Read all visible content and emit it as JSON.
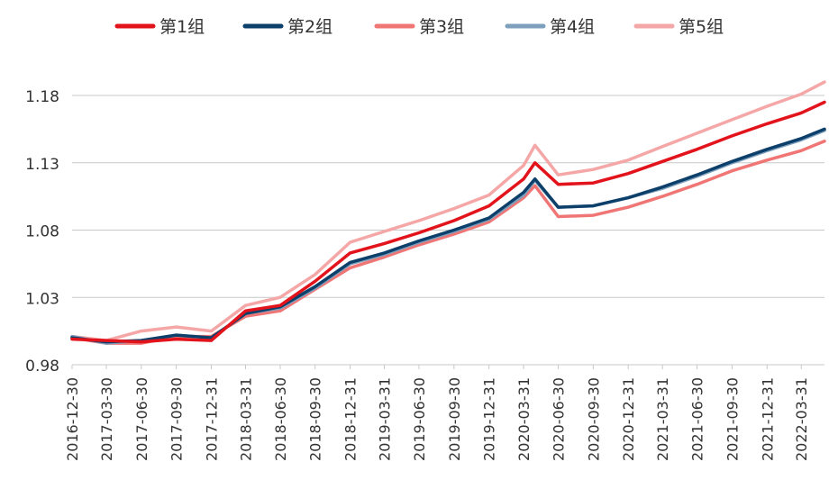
{
  "chart_data": {
    "type": "line",
    "title": "",
    "xlabel": "",
    "ylabel": "",
    "ylim": [
      0.98,
      1.18
    ],
    "yticks": [
      "0.98",
      "1.03",
      "1.08",
      "1.13",
      "1.18"
    ],
    "grid": "horizontal",
    "legend_position": "top",
    "x_tick_labels": [
      "2016-12-30",
      "2017-03-30",
      "2017-06-30",
      "2017-09-30",
      "2017-12-31",
      "2018-03-31",
      "2018-06-30",
      "2018-09-30",
      "2018-12-31",
      "2019-03-31",
      "2019-06-30",
      "2019-09-30",
      "2019-12-31",
      "2020-03-31",
      "2020-06-30",
      "2020-09-30",
      "2020-12-31",
      "2021-03-31",
      "2021-06-30",
      "2021-09-30",
      "2021-12-31",
      "2022-03-31"
    ],
    "x": [
      "2016-12-30",
      "2017-03-30",
      "2017-06-30",
      "2017-09-30",
      "2017-12-31",
      "2018-03-31",
      "2018-06-30",
      "2018-09-30",
      "2018-12-31",
      "2019-03-31",
      "2019-06-30",
      "2019-09-30",
      "2019-12-31",
      "2020-03-31",
      "2020-04-30",
      "2020-06-30",
      "2020-09-30",
      "2020-12-31",
      "2021-03-31",
      "2021-06-30",
      "2021-09-30",
      "2021-12-31",
      "2022-03-31",
      "2022-05-31"
    ],
    "series": [
      {
        "name": "第1组",
        "color": "#e3131b",
        "values": [
          0.999,
          0.998,
          0.997,
          0.999,
          0.998,
          1.02,
          1.024,
          1.042,
          1.063,
          1.07,
          1.078,
          1.087,
          1.098,
          1.118,
          1.13,
          1.114,
          1.115,
          1.122,
          1.131,
          1.14,
          1.15,
          1.159,
          1.167,
          1.175
        ]
      },
      {
        "name": "第2组",
        "color": "#0d3f6b",
        "values": [
          1.0,
          0.997,
          0.998,
          1.002,
          1.0,
          1.018,
          1.023,
          1.038,
          1.056,
          1.063,
          1.072,
          1.08,
          1.089,
          1.108,
          1.118,
          1.097,
          1.098,
          1.104,
          1.112,
          1.121,
          1.131,
          1.14,
          1.148,
          1.155
        ]
      },
      {
        "name": "第3组",
        "color": "#f07676",
        "values": [
          1.0,
          0.996,
          0.996,
          1.001,
          1.001,
          1.016,
          1.02,
          1.036,
          1.052,
          1.06,
          1.069,
          1.077,
          1.086,
          1.104,
          1.113,
          1.09,
          1.091,
          1.097,
          1.105,
          1.114,
          1.124,
          1.132,
          1.139,
          1.146
        ]
      },
      {
        "name": "第4组",
        "color": "#7ea0bd",
        "values": [
          1.001,
          0.996,
          0.998,
          1.002,
          1.0,
          1.018,
          1.022,
          1.037,
          1.055,
          1.062,
          1.071,
          1.079,
          1.088,
          1.106,
          1.117,
          1.097,
          1.098,
          1.104,
          1.111,
          1.12,
          1.13,
          1.139,
          1.147,
          1.154
        ]
      },
      {
        "name": "第5组",
        "color": "#f5a7a7",
        "values": [
          1.001,
          0.998,
          1.005,
          1.008,
          1.005,
          1.024,
          1.03,
          1.047,
          1.071,
          1.079,
          1.087,
          1.096,
          1.106,
          1.128,
          1.143,
          1.121,
          1.125,
          1.132,
          1.142,
          1.152,
          1.162,
          1.172,
          1.181,
          1.19
        ]
      }
    ]
  }
}
